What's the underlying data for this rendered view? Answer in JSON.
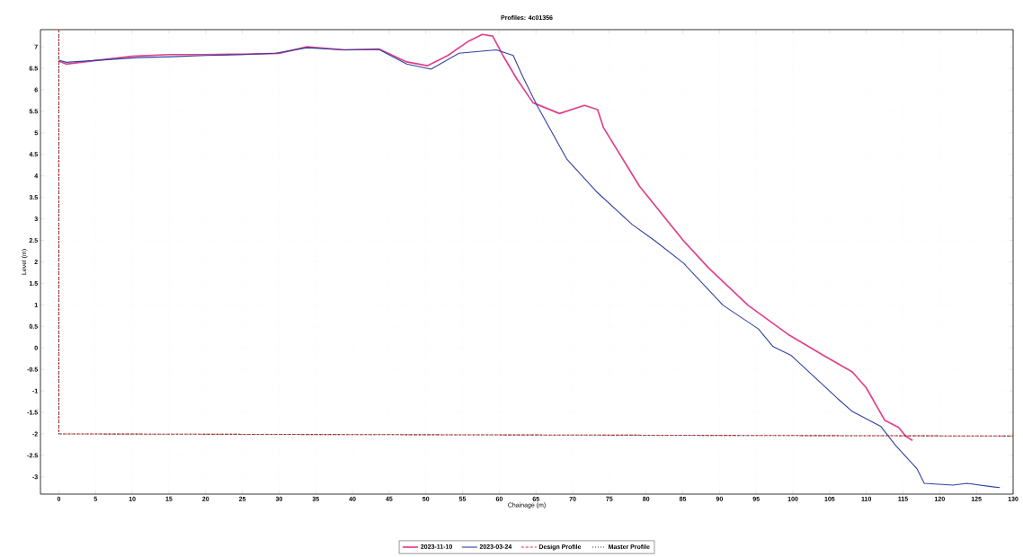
{
  "chart_data": {
    "type": "line",
    "title": "Profiles: 4c01356",
    "xlabel": "Chainage (m)",
    "ylabel": "Level (m)",
    "xlim": [
      -2.5,
      130
    ],
    "ylim": [
      -3.4,
      7.4
    ],
    "xticks": [
      0,
      5,
      10,
      15,
      20,
      25,
      30,
      35,
      40,
      45,
      50,
      55,
      60,
      65,
      70,
      75,
      80,
      85,
      90,
      95,
      100,
      105,
      110,
      115,
      120,
      125,
      130
    ],
    "yticks": [
      -3,
      -2.5,
      -2,
      -1.5,
      -1,
      -0.5,
      0,
      0.5,
      1,
      1.5,
      2,
      2.5,
      3,
      3.5,
      4,
      4.5,
      5,
      5.5,
      6,
      6.5,
      7
    ],
    "grid": true,
    "legend": "bottom",
    "marker": "none",
    "series": [
      {
        "name": "2023-11-10",
        "color": "#e0408a",
        "line_style": "solid",
        "x": [
          0,
          1,
          5,
          10,
          15,
          20,
          25,
          30,
          33.8,
          38.9,
          43.6,
          47.4,
          50.2,
          53,
          55.8,
          57.7,
          59.1,
          60.5,
          62.4,
          64.6,
          68.2,
          71.6,
          73.4,
          74.2,
          79.1,
          85.1,
          88.5,
          93.9,
          99.3,
          104.2,
          108.1,
          110,
          112.5,
          114.4,
          115.4,
          116.3
        ],
        "values": [
          6.67,
          6.6,
          6.68,
          6.78,
          6.82,
          6.82,
          6.83,
          6.85,
          7.0,
          6.93,
          6.95,
          6.65,
          6.56,
          6.8,
          7.13,
          7.29,
          7.25,
          6.8,
          6.25,
          5.7,
          5.45,
          5.64,
          5.54,
          5.12,
          3.76,
          2.49,
          1.86,
          0.99,
          0.32,
          -0.18,
          -0.56,
          -0.93,
          -1.68,
          -1.85,
          -2.06,
          -2.15
        ]
      },
      {
        "name": "2023-03-24",
        "color": "#3040a0",
        "line_style": "solid",
        "x": [
          0,
          1,
          10.8,
          15.5,
          20,
          25,
          29.5,
          33.8,
          38.9,
          43.6,
          47.4,
          50.7,
          54.5,
          59.6,
          61.9,
          63.2,
          65.2,
          69.2,
          73.2,
          78.1,
          81.2,
          85.1,
          90.5,
          95.3,
          97.3,
          99.8,
          106.1,
          108.1,
          112,
          114,
          116.9,
          117.9,
          121.8,
          123.7,
          127.2,
          128.2
        ],
        "values": [
          6.69,
          6.64,
          6.75,
          6.77,
          6.8,
          6.82,
          6.85,
          6.98,
          6.93,
          6.94,
          6.6,
          6.48,
          6.85,
          6.93,
          6.8,
          6.31,
          5.62,
          4.39,
          3.64,
          2.87,
          2.49,
          1.97,
          0.99,
          0.44,
          0.03,
          -0.18,
          -1.18,
          -1.48,
          -1.83,
          -2.27,
          -2.81,
          -3.15,
          -3.19,
          -3.15,
          -3.23,
          -3.25
        ]
      },
      {
        "name": "Design Profile",
        "color": "#e03030",
        "line_style": "dashed",
        "x": [
          0,
          0,
          130
        ],
        "values": [
          7.4,
          -2.0,
          -2.05
        ]
      },
      {
        "name": "Master Profile",
        "color": "#303030",
        "line_style": "dotted",
        "x": [
          0,
          0,
          130
        ],
        "values": [
          7.4,
          -2.0,
          -2.05
        ]
      }
    ]
  }
}
